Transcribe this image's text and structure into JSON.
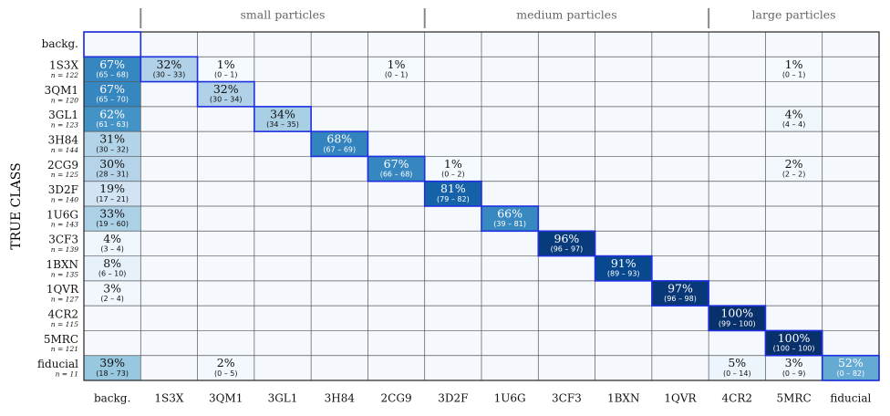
{
  "chart_data": {
    "type": "heatmap",
    "y_label": "TRUE CLASS",
    "columns": [
      "backg.",
      "1S3X",
      "3QM1",
      "3GL1",
      "3H84",
      "2CG9",
      "3D2F",
      "1U6G",
      "3CF3",
      "1BXN",
      "1QVR",
      "4CR2",
      "5MRC",
      "fiducial"
    ],
    "rows": [
      "backg.",
      "1S3X",
      "3QM1",
      "3GL1",
      "3H84",
      "2CG9",
      "3D2F",
      "1U6G",
      "3CF3",
      "1BXN",
      "1QVR",
      "4CR2",
      "5MRC",
      "fiducial"
    ],
    "row_counts": [
      null,
      "n = 122",
      "n = 120",
      "n = 123",
      "n = 144",
      "n = 125",
      "n = 140",
      "n = 143",
      "n = 139",
      "n = 135",
      "n = 127",
      "n = 115",
      "n = 121",
      "n = 11"
    ],
    "column_groups": [
      {
        "label": "small particles",
        "start": 1,
        "end": 5
      },
      {
        "label": "medium particles",
        "start": 6,
        "end": 10
      },
      {
        "label": "large particles",
        "start": 11,
        "end": 13
      }
    ],
    "colormap": "Blues",
    "zlim": [
      0,
      100
    ],
    "highlight_diagonal": true,
    "highlight_color": "#1f2fe0",
    "values": [
      [
        null,
        null,
        null,
        null,
        null,
        null,
        null,
        null,
        null,
        null,
        null,
        null,
        null,
        null
      ],
      [
        67,
        32,
        1,
        null,
        null,
        1,
        null,
        null,
        null,
        null,
        null,
        null,
        1,
        null
      ],
      [
        67,
        null,
        32,
        null,
        null,
        null,
        null,
        null,
        null,
        null,
        null,
        null,
        null,
        null
      ],
      [
        62,
        null,
        null,
        34,
        null,
        null,
        null,
        null,
        null,
        null,
        null,
        null,
        4,
        null
      ],
      [
        31,
        null,
        null,
        null,
        68,
        null,
        null,
        null,
        null,
        null,
        null,
        null,
        null,
        null
      ],
      [
        30,
        null,
        null,
        null,
        null,
        67,
        1,
        null,
        null,
        null,
        null,
        null,
        2,
        null
      ],
      [
        19,
        null,
        null,
        null,
        null,
        null,
        81,
        null,
        null,
        null,
        null,
        null,
        null,
        null
      ],
      [
        33,
        null,
        null,
        null,
        null,
        null,
        null,
        66,
        null,
        null,
        null,
        null,
        null,
        null
      ],
      [
        4,
        null,
        null,
        null,
        null,
        null,
        null,
        null,
        96,
        null,
        null,
        null,
        null,
        null
      ],
      [
        8,
        null,
        null,
        null,
        null,
        null,
        null,
        null,
        null,
        91,
        null,
        null,
        null,
        null
      ],
      [
        3,
        null,
        null,
        null,
        null,
        null,
        null,
        null,
        null,
        null,
        97,
        null,
        null,
        null
      ],
      [
        null,
        null,
        null,
        null,
        null,
        null,
        null,
        null,
        null,
        null,
        null,
        100,
        null,
        null
      ],
      [
        null,
        null,
        null,
        null,
        null,
        null,
        null,
        null,
        null,
        null,
        null,
        null,
        100,
        null
      ],
      [
        39,
        null,
        2,
        null,
        null,
        null,
        null,
        null,
        null,
        null,
        null,
        5,
        3,
        52
      ]
    ],
    "value_labels": [
      [
        null,
        null,
        null,
        null,
        null,
        null,
        null,
        null,
        null,
        null,
        null,
        null,
        null,
        null
      ],
      [
        "67%",
        "32%",
        "1%",
        null,
        null,
        "1%",
        null,
        null,
        null,
        null,
        null,
        null,
        "1%",
        null
      ],
      [
        "67%",
        null,
        "32%",
        null,
        null,
        null,
        null,
        null,
        null,
        null,
        null,
        null,
        null,
        null
      ],
      [
        "62%",
        null,
        null,
        "34%",
        null,
        null,
        null,
        null,
        null,
        null,
        null,
        null,
        "4%",
        null
      ],
      [
        "31%",
        null,
        null,
        null,
        "68%",
        null,
        null,
        null,
        null,
        null,
        null,
        null,
        null,
        null
      ],
      [
        "30%",
        null,
        null,
        null,
        null,
        "67%",
        "1%",
        null,
        null,
        null,
        null,
        null,
        "2%",
        null
      ],
      [
        "19%",
        null,
        null,
        null,
        null,
        null,
        "81%",
        null,
        null,
        null,
        null,
        null,
        null,
        null
      ],
      [
        "33%",
        null,
        null,
        null,
        null,
        null,
        null,
        "66%",
        null,
        null,
        null,
        null,
        null,
        null
      ],
      [
        "4%",
        null,
        null,
        null,
        null,
        null,
        null,
        null,
        "96%",
        null,
        null,
        null,
        null,
        null
      ],
      [
        "8%",
        null,
        null,
        null,
        null,
        null,
        null,
        null,
        null,
        "91%",
        null,
        null,
        null,
        null
      ],
      [
        "3%",
        null,
        null,
        null,
        null,
        null,
        null,
        null,
        null,
        null,
        "97%",
        null,
        null,
        null
      ],
      [
        null,
        null,
        null,
        null,
        null,
        null,
        null,
        null,
        null,
        null,
        null,
        "100%",
        null,
        null
      ],
      [
        null,
        null,
        null,
        null,
        null,
        null,
        null,
        null,
        null,
        null,
        null,
        null,
        "100%",
        null
      ],
      [
        "39%",
        null,
        "2%",
        null,
        null,
        null,
        null,
        null,
        null,
        null,
        null,
        "5%",
        "3%",
        "52%"
      ]
    ],
    "ranges": [
      [
        null,
        null,
        null,
        null,
        null,
        null,
        null,
        null,
        null,
        null,
        null,
        null,
        null,
        null
      ],
      [
        "(65 – 68)",
        "(30 – 33)",
        "(0 – 1)",
        null,
        null,
        "(0 – 1)",
        null,
        null,
        null,
        null,
        null,
        null,
        "(0 – 1)",
        null
      ],
      [
        "(65 – 70)",
        null,
        "(30 – 34)",
        null,
        null,
        null,
        null,
        null,
        null,
        null,
        null,
        null,
        null,
        null
      ],
      [
        "(61 – 63)",
        null,
        null,
        "(34 – 35)",
        null,
        null,
        null,
        null,
        null,
        null,
        null,
        null,
        "(4 – 4)",
        null
      ],
      [
        "(30 – 32)",
        null,
        null,
        null,
        "(67 – 69)",
        null,
        null,
        null,
        null,
        null,
        null,
        null,
        null,
        null
      ],
      [
        "(28 – 31)",
        null,
        null,
        null,
        null,
        "(66 – 68)",
        "(0 – 2)",
        null,
        null,
        null,
        null,
        null,
        "(2 – 2)",
        null
      ],
      [
        "(17 – 21)",
        null,
        null,
        null,
        null,
        null,
        "(79 – 82)",
        null,
        null,
        null,
        null,
        null,
        null,
        null
      ],
      [
        "(19 – 60)",
        null,
        null,
        null,
        null,
        null,
        null,
        "(39 – 81)",
        null,
        null,
        null,
        null,
        null,
        null
      ],
      [
        "(3 – 4)",
        null,
        null,
        null,
        null,
        null,
        null,
        null,
        "(96 – 97)",
        null,
        null,
        null,
        null,
        null
      ],
      [
        "(6 – 10)",
        null,
        null,
        null,
        null,
        null,
        null,
        null,
        null,
        "(89 – 93)",
        null,
        null,
        null,
        null
      ],
      [
        "(2 – 4)",
        null,
        null,
        null,
        null,
        null,
        null,
        null,
        null,
        null,
        "(96 – 98)",
        null,
        null,
        null
      ],
      [
        null,
        null,
        null,
        null,
        null,
        null,
        null,
        null,
        null,
        null,
        null,
        "(99 – 100)",
        null,
        null
      ],
      [
        null,
        null,
        null,
        null,
        null,
        null,
        null,
        null,
        null,
        null,
        null,
        null,
        "(100 – 100)",
        null
      ],
      [
        "(18 – 73)",
        null,
        "(0 – 5)",
        null,
        null,
        null,
        null,
        null,
        null,
        null,
        null,
        "(0 – 14)",
        "(0 – 9)",
        "(0 – 82)"
      ]
    ]
  }
}
